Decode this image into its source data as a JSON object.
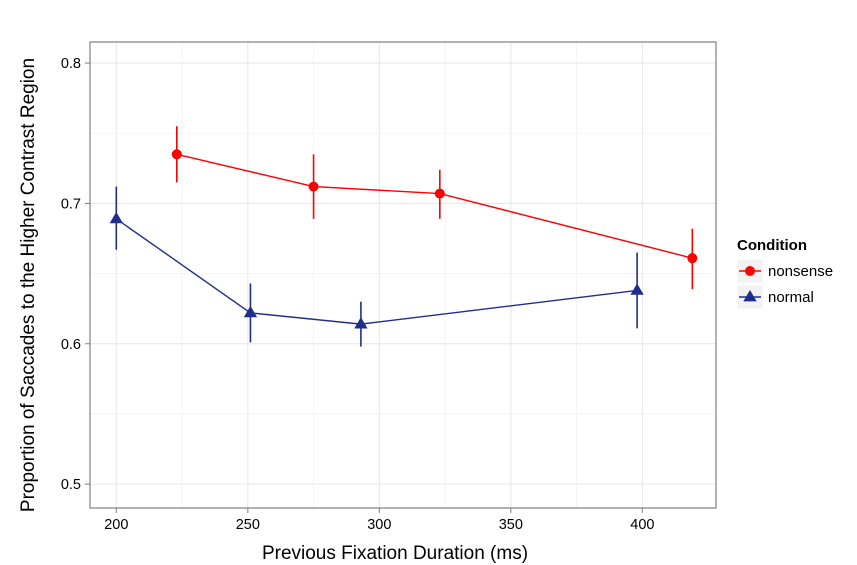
{
  "chart_data": {
    "type": "line",
    "xlabel": "Previous Fixation Duration (ms)",
    "ylabel": "Proportion of Saccades to the Higher Contrast Region",
    "xlim": [
      190,
      428
    ],
    "ylim": [
      0.483,
      0.815
    ],
    "xticks": [
      200,
      250,
      300,
      350,
      400
    ],
    "yticks": [
      0.5,
      0.6,
      0.7,
      0.8
    ],
    "xtick_labels": [
      "200",
      "250",
      "300",
      "350",
      "400"
    ],
    "ytick_labels": [
      "0.5",
      "0.6",
      "0.7",
      "0.8"
    ],
    "grid": true,
    "legend": {
      "title": "Condition",
      "position": "right"
    },
    "series": [
      {
        "name": "nonsense",
        "color": "#ff0000",
        "marker": "circle",
        "points": [
          {
            "x": 223,
            "y": 0.735,
            "ymin": 0.715,
            "ymax": 0.755
          },
          {
            "x": 275,
            "y": 0.712,
            "ymin": 0.689,
            "ymax": 0.735
          },
          {
            "x": 323,
            "y": 0.707,
            "ymin": 0.689,
            "ymax": 0.724
          },
          {
            "x": 419,
            "y": 0.661,
            "ymin": 0.639,
            "ymax": 0.682
          }
        ]
      },
      {
        "name": "normal",
        "color": "#1f2e8c",
        "marker": "triangle",
        "points": [
          {
            "x": 200,
            "y": 0.689,
            "ymin": 0.667,
            "ymax": 0.712
          },
          {
            "x": 251,
            "y": 0.622,
            "ymin": 0.601,
            "ymax": 0.643
          },
          {
            "x": 293,
            "y": 0.614,
            "ymin": 0.598,
            "ymax": 0.63
          },
          {
            "x": 398,
            "y": 0.638,
            "ymin": 0.611,
            "ymax": 0.665
          }
        ]
      }
    ]
  }
}
